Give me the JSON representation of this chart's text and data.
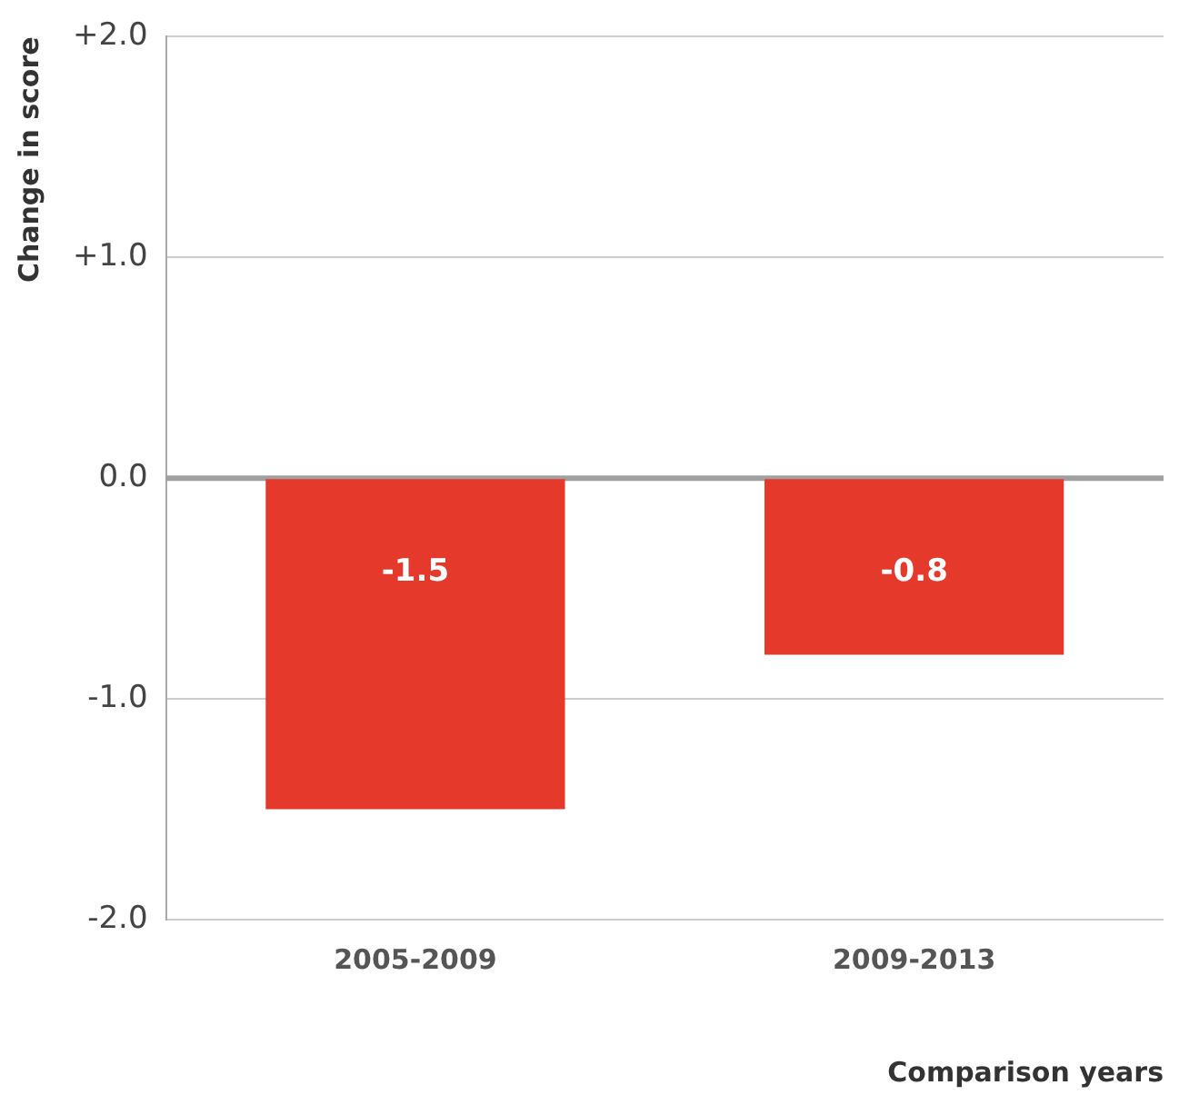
{
  "chart_data": {
    "type": "bar",
    "categories": [
      "2005-2009",
      "2009-2013"
    ],
    "values": [
      -1.5,
      -0.8
    ],
    "color": "#e53a2b",
    "data_labels": true,
    "ylim": [
      -2,
      2
    ],
    "yticks": [
      {
        "value": 2,
        "label": "+2.0"
      },
      {
        "value": 1,
        "label": "+1.0"
      },
      {
        "value": 0,
        "label": "0.0"
      },
      {
        "value": -1,
        "label": "-1.0"
      },
      {
        "value": -2,
        "label": "-2.0"
      }
    ],
    "ylabel": "Change in score",
    "xlabel": "Comparison years",
    "grid": "y",
    "legend": false,
    "ref_lines": [
      {
        "axis": "y",
        "value": 0,
        "color": "#a0a0a0"
      }
    ]
  }
}
